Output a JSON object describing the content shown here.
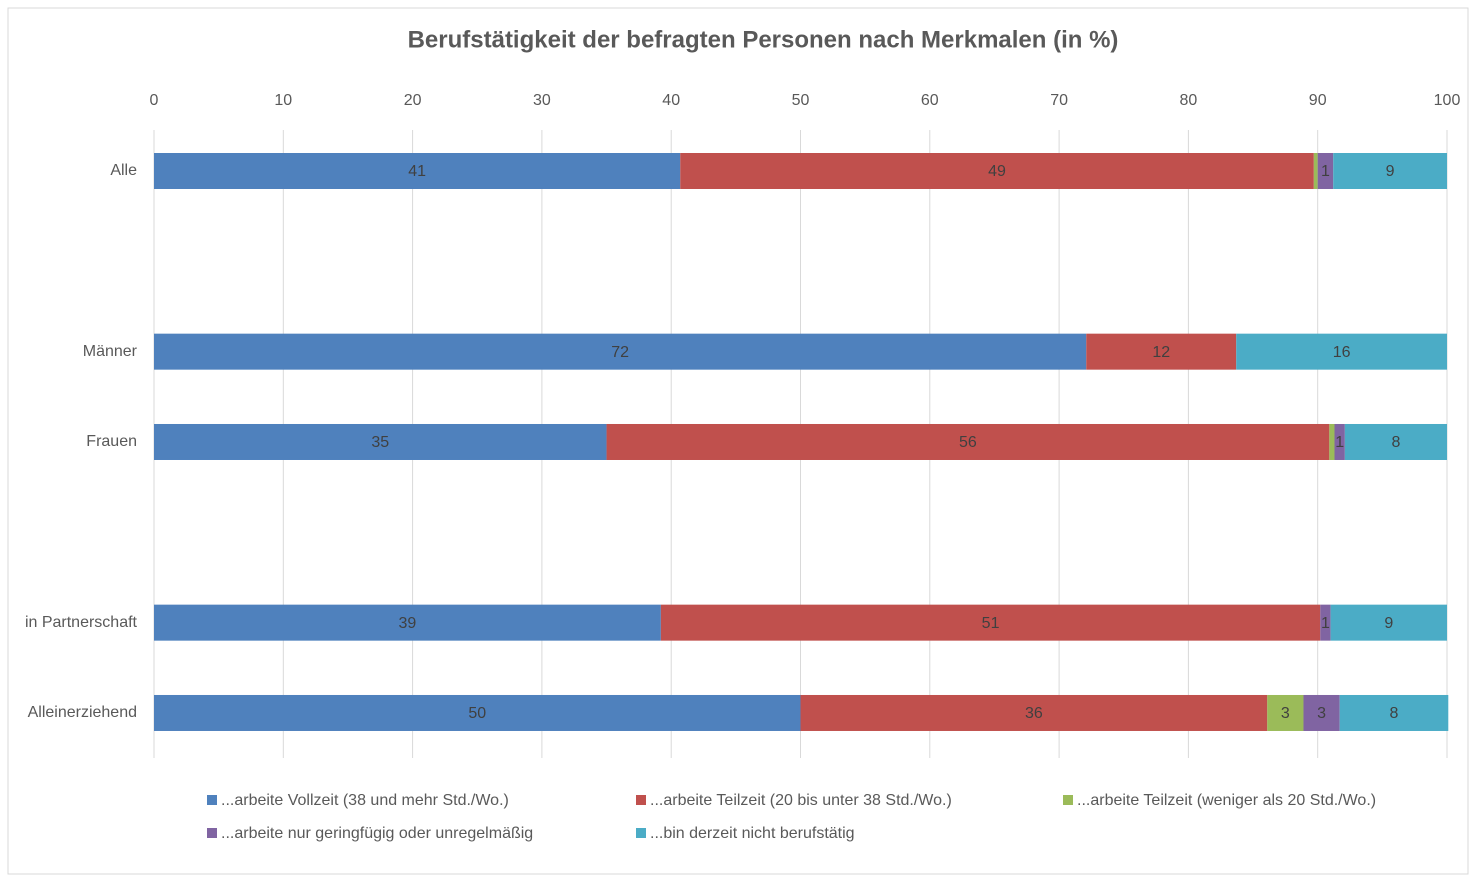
{
  "chart_data": {
    "type": "stacked-bar-horizontal",
    "title": "Berufstätigkeit der befragten Personen nach Merkmalen (in %)",
    "categories": [
      "Alle",
      null,
      "Männer",
      "Frauen",
      null,
      "in Partnerschaft",
      "Alleinerziehend"
    ],
    "series": [
      {
        "name": "...arbeite Vollzeit (38 und mehr Std./Wo.)",
        "color": "#4f81bd",
        "values": [
          40.7,
          null,
          72.1,
          35.0,
          null,
          39.2,
          50.0
        ],
        "value_labels": [
          "41",
          null,
          "72",
          "35",
          null,
          "39",
          "50"
        ]
      },
      {
        "name": "...arbeite Teilzeit (20 bis unter 38 Std./Wo.)",
        "color": "#c0504d",
        "values": [
          49.0,
          null,
          11.6,
          55.9,
          null,
          51.0,
          36.1
        ],
        "value_labels": [
          "49",
          null,
          "12",
          "56",
          null,
          "51",
          "36"
        ]
      },
      {
        "name": "...arbeite Teilzeit (weniger als 20 Std./Wo.)",
        "color": "#9bbb59",
        "values": [
          0.3,
          null,
          0,
          0.4,
          null,
          0,
          2.8
        ],
        "value_labels": [
          null,
          null,
          null,
          null,
          null,
          null,
          "3"
        ]
      },
      {
        "name": "...arbeite nur geringfügig oder unregelmäßig",
        "color": "#8064a2",
        "values": [
          1.2,
          null,
          0,
          0.8,
          null,
          0.8,
          2.8
        ],
        "value_labels": [
          "1",
          null,
          null,
          "1",
          null,
          "1",
          "3"
        ]
      },
      {
        "name": "...bin derzeit nicht berufstätig",
        "color": "#4bacc6",
        "values": [
          8.8,
          null,
          16.3,
          7.9,
          null,
          9.0,
          8.4
        ],
        "value_labels": [
          "9",
          null,
          "16",
          "8",
          null,
          "9",
          "8"
        ]
      }
    ],
    "xlim": [
      0,
      100
    ],
    "xticks": [
      0,
      10,
      20,
      30,
      40,
      50,
      60,
      70,
      80,
      90,
      100
    ],
    "grid": true,
    "legend": "bottom"
  }
}
